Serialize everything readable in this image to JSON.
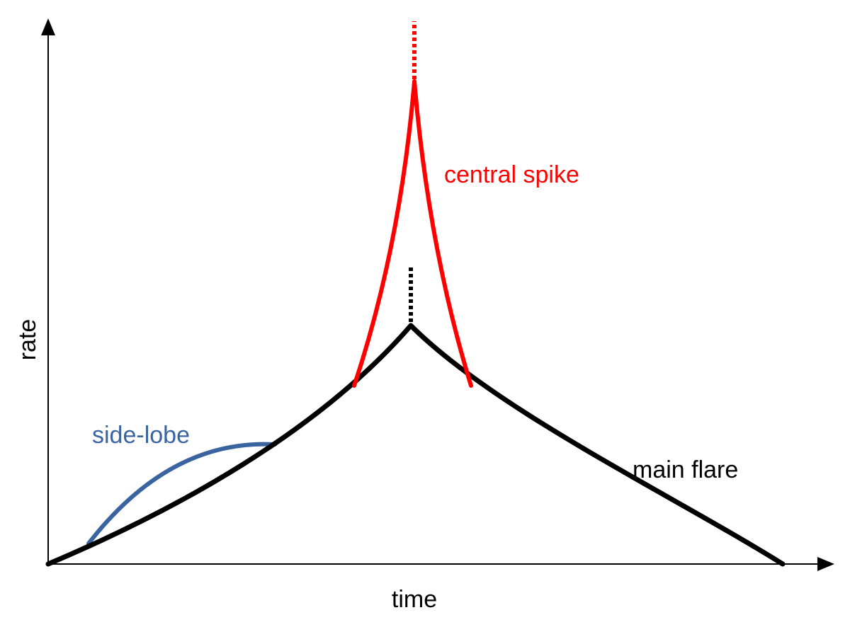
{
  "axes": {
    "x_label": "time",
    "y_label": "rate"
  },
  "labels": {
    "central_spike": "central spike",
    "side_lobe": "side-lobe",
    "main_flare": "main flare"
  }
}
